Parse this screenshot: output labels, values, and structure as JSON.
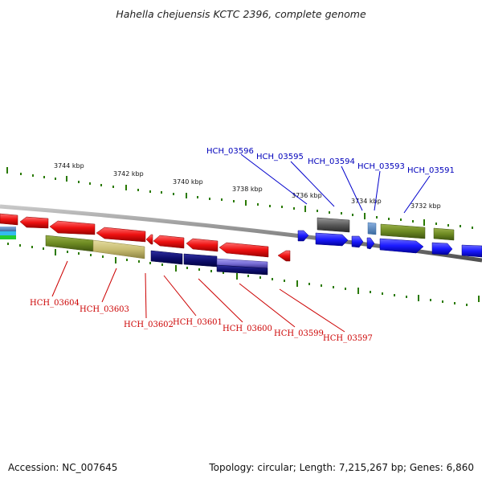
{
  "title": "Hahella chejuensis KCTC 2396, complete genome",
  "footer": {
    "accession": "Accession: NC_007645",
    "topology": "Topology: circular; Length: 7,215,267 bp; Genes: 6,860"
  },
  "colors": {
    "forward_strand": "#1a1aff",
    "reverse_strand": "#ee1111",
    "top_label": "#0000bb",
    "bottom_label": "#cc0000",
    "ticks": "#2a7a00",
    "backbone": "#8a8a8a"
  },
  "scale_labels": [
    "3744 kbp",
    "3742 kbp",
    "3740 kbp",
    "3738 kbp",
    "3736 kbp",
    "3734 kbp",
    "3732 kbp"
  ],
  "top_gene_labels": [
    "HCH_03596",
    "HCH_03595",
    "HCH_03594",
    "HCH_03593",
    "HCH_03591"
  ],
  "bottom_gene_labels": [
    "HCH_03604",
    "HCH_03603",
    "HCH_03602",
    "HCH_03601",
    "HCH_03600",
    "HCH_03599",
    "HCH_03597"
  ]
}
